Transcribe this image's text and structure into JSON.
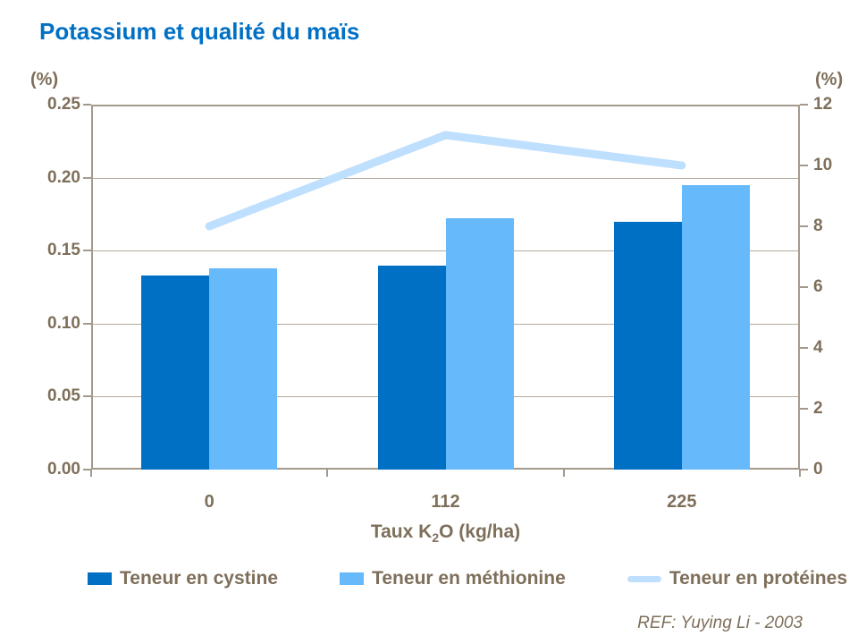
{
  "title": "Potassium et qualité du maïs",
  "ref_note": "REF: Yuying Li - 2003",
  "left_axis": {
    "unit": "(%)",
    "ticks": [
      "0.25",
      "0.20",
      "0.15",
      "0.10",
      "0.05",
      "0.00"
    ]
  },
  "right_axis": {
    "unit": "(%)",
    "ticks": [
      "12",
      "10",
      "8",
      "6",
      "4",
      "2",
      "0"
    ]
  },
  "x_axis": {
    "title_prefix": "Taux K",
    "title_sub": "2",
    "title_suffix": "O (kg/ha)"
  },
  "legend": {
    "items": [
      {
        "label": "Teneur en cystine",
        "type": "swatch",
        "color": "#0070C5"
      },
      {
        "label": "Teneur en méthionine",
        "type": "swatch",
        "color": "#66B9FA"
      },
      {
        "label": "Teneur en protéines",
        "type": "line",
        "color": "#BFDFFE"
      }
    ]
  },
  "chart_data": {
    "type": "bar",
    "subtype": "bar+line dual-axis",
    "title": "Potassium et qualité du maïs",
    "categories": [
      "0",
      "112",
      "225"
    ],
    "series": [
      {
        "name": "Teneur en cystine",
        "type": "bar",
        "axis": "left",
        "color": "#0070C5",
        "values": [
          0.133,
          0.14,
          0.17
        ]
      },
      {
        "name": "Teneur en méthionine",
        "type": "bar",
        "axis": "left",
        "color": "#66B9FA",
        "values": [
          0.138,
          0.172,
          0.195
        ]
      },
      {
        "name": "Teneur en protéines",
        "type": "line",
        "axis": "right",
        "color": "#BFDFFE",
        "values": [
          8,
          11,
          10
        ]
      }
    ],
    "xlabel": "Taux K2O (kg/ha)",
    "left_ylabel": "(%)",
    "right_ylabel": "(%)",
    "left_ylim": [
      0,
      0.25
    ],
    "right_ylim": [
      0,
      12
    ],
    "left_tick_step": 0.05,
    "right_tick_step": 2,
    "grid": true,
    "legend_position": "bottom"
  },
  "colors": {
    "title": "#0070C5",
    "axis_text": "#7E6F5A",
    "axis_line": "#A49A8C",
    "gridline": "#B4AB9D",
    "background": "#FFFFFF"
  }
}
